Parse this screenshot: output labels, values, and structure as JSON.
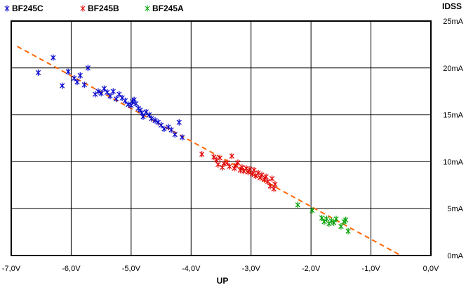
{
  "chart_data": {
    "type": "scatter",
    "title": "",
    "xlabel": "UP",
    "ylabel": "IDSS",
    "xlim": [
      -7.0,
      0.0
    ],
    "ylim": [
      0,
      25
    ],
    "x_ticks": [
      -7,
      -6,
      -5,
      -4,
      -3,
      -2,
      -1,
      0
    ],
    "x_tick_labels": [
      "-7,0V",
      "-6,0V",
      "-5,0V",
      "-4,0V",
      "-3,0V",
      "-2,0V",
      "-1,0V",
      "0,0V"
    ],
    "y_ticks": [
      0,
      5,
      10,
      15,
      20,
      25
    ],
    "y_tick_labels": [
      "0mA",
      "5mA",
      "10mA",
      "15mA",
      "20mA",
      "25mA"
    ],
    "grid": true,
    "legend_position": "top-left",
    "series": [
      {
        "name": "BF245C",
        "color": "#0000cc",
        "marker": "asterisk",
        "points": [
          [
            -6.55,
            19.5
          ],
          [
            -6.3,
            21.1
          ],
          [
            -6.15,
            18.1
          ],
          [
            -6.05,
            19.6
          ],
          [
            -5.95,
            18.9
          ],
          [
            -5.9,
            18.5
          ],
          [
            -5.85,
            19.2
          ],
          [
            -5.78,
            18.2
          ],
          [
            -5.72,
            20.0
          ],
          [
            -5.6,
            17.2
          ],
          [
            -5.55,
            17.5
          ],
          [
            -5.5,
            17.3
          ],
          [
            -5.45,
            17.8
          ],
          [
            -5.4,
            17.4
          ],
          [
            -5.35,
            17.0
          ],
          [
            -5.3,
            17.5
          ],
          [
            -5.25,
            16.7
          ],
          [
            -5.2,
            17.2
          ],
          [
            -5.15,
            16.8
          ],
          [
            -5.1,
            16.5
          ],
          [
            -5.05,
            16.1
          ],
          [
            -5.0,
            16.0
          ],
          [
            -4.98,
            16.4
          ],
          [
            -4.95,
            16.6
          ],
          [
            -4.92,
            16.2
          ],
          [
            -4.88,
            15.7
          ],
          [
            -4.85,
            15.5
          ],
          [
            -4.82,
            15.2
          ],
          [
            -4.8,
            14.8
          ],
          [
            -4.75,
            15.3
          ],
          [
            -4.7,
            15.0
          ],
          [
            -4.66,
            14.6
          ],
          [
            -4.6,
            14.4
          ],
          [
            -4.55,
            14.2
          ],
          [
            -4.5,
            13.9
          ],
          [
            -4.45,
            13.5
          ],
          [
            -4.38,
            13.7
          ],
          [
            -4.33,
            13.4
          ],
          [
            -4.27,
            12.9
          ],
          [
            -4.2,
            14.2
          ],
          [
            -4.15,
            12.6
          ]
        ]
      },
      {
        "name": "BF245B",
        "color": "#e00000",
        "marker": "asterisk",
        "points": [
          [
            -3.82,
            10.8
          ],
          [
            -3.62,
            10.5
          ],
          [
            -3.58,
            10.2
          ],
          [
            -3.55,
            9.7
          ],
          [
            -3.52,
            10.4
          ],
          [
            -3.48,
            9.4
          ],
          [
            -3.45,
            9.8
          ],
          [
            -3.4,
            9.9
          ],
          [
            -3.36,
            9.5
          ],
          [
            -3.32,
            10.6
          ],
          [
            -3.28,
            9.3
          ],
          [
            -3.25,
            9.6
          ],
          [
            -3.22,
            9.9
          ],
          [
            -3.18,
            9.1
          ],
          [
            -3.15,
            9.4
          ],
          [
            -3.12,
            9.0
          ],
          [
            -3.08,
            9.3
          ],
          [
            -3.05,
            8.9
          ],
          [
            -3.02,
            9.2
          ],
          [
            -2.98,
            8.7
          ],
          [
            -2.95,
            9.1
          ],
          [
            -2.92,
            8.5
          ],
          [
            -2.88,
            8.8
          ],
          [
            -2.85,
            8.3
          ],
          [
            -2.82,
            8.6
          ],
          [
            -2.78,
            8.1
          ],
          [
            -2.75,
            8.4
          ],
          [
            -2.72,
            7.9
          ],
          [
            -2.68,
            7.4
          ],
          [
            -2.65,
            8.2
          ],
          [
            -2.62,
            7.1
          ],
          [
            -2.6,
            7.6
          ]
        ]
      },
      {
        "name": "BF245A",
        "color": "#00a000",
        "marker": "asterisk",
        "points": [
          [
            -2.22,
            5.4
          ],
          [
            -1.98,
            4.8
          ],
          [
            -1.82,
            4.0
          ],
          [
            -1.78,
            3.6
          ],
          [
            -1.74,
            3.9
          ],
          [
            -1.7,
            3.4
          ],
          [
            -1.66,
            3.7
          ],
          [
            -1.62,
            3.5
          ],
          [
            -1.58,
            3.9
          ],
          [
            -1.5,
            3.1
          ],
          [
            -1.45,
            3.6
          ],
          [
            -1.42,
            3.8
          ],
          [
            -1.38,
            2.6
          ]
        ]
      }
    ],
    "trendline": {
      "style": "dashed",
      "color": "#ff6600",
      "points": [
        [
          -6.9,
          22.3
        ],
        [
          -0.5,
          0.0
        ]
      ]
    }
  }
}
